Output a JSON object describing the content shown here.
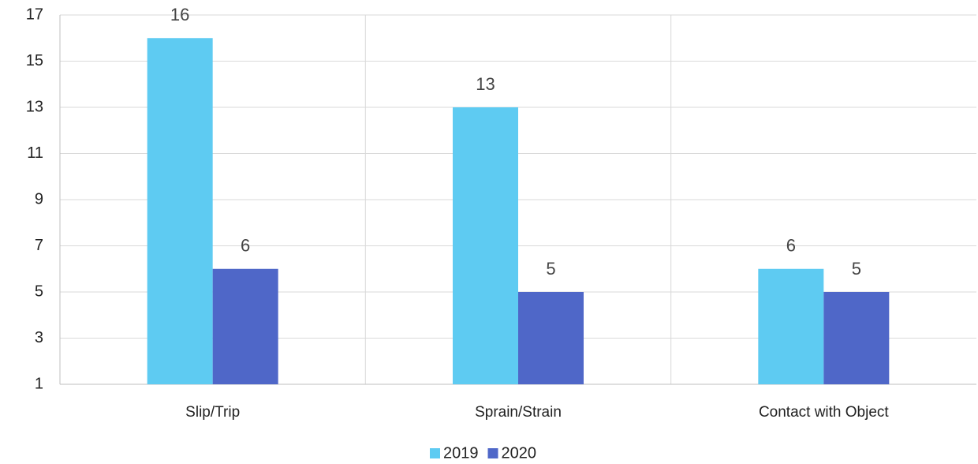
{
  "chart_data": {
    "type": "bar",
    "categories": [
      "Slip/Trip",
      "Sprain/Strain",
      "Contact with Object"
    ],
    "series": [
      {
        "name": "2019",
        "color": "#5ecbf2",
        "values": [
          16,
          13,
          6
        ]
      },
      {
        "name": "2020",
        "color": "#4f67c8",
        "values": [
          6,
          5,
          5
        ]
      }
    ],
    "ylim": [
      1,
      17
    ],
    "yticks": [
      1,
      3,
      5,
      7,
      9,
      11,
      13,
      15,
      17
    ],
    "grid": true
  }
}
